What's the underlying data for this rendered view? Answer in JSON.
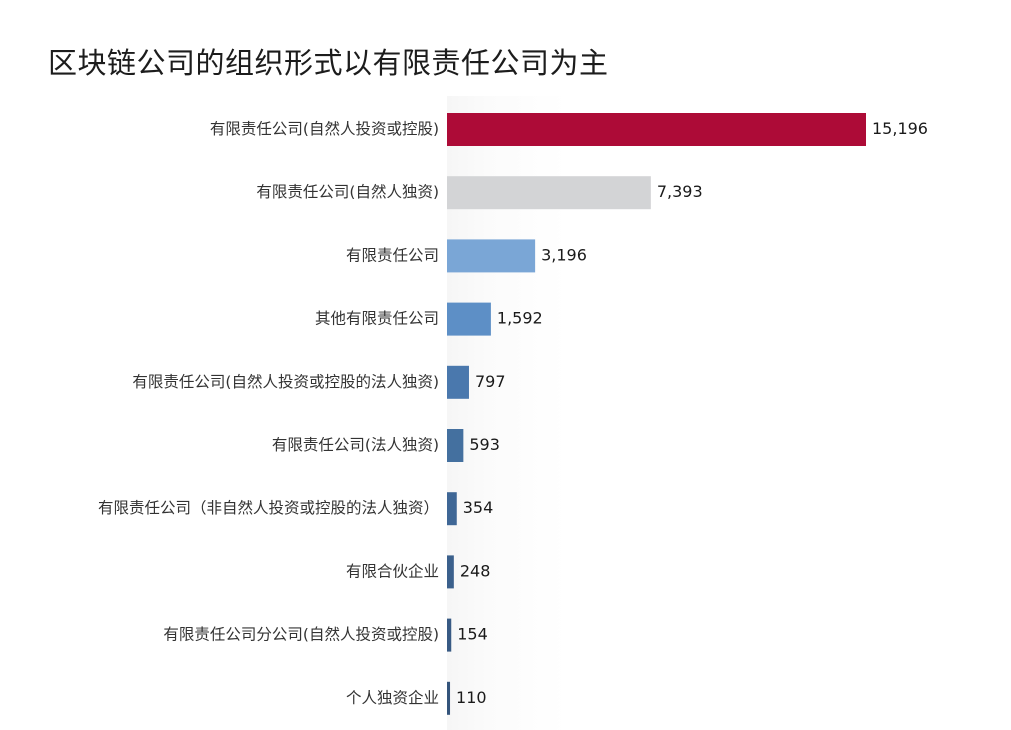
{
  "chart_data": {
    "type": "bar",
    "orientation": "horizontal",
    "title": "区块链公司的组织形式以有限责任公司为主",
    "categories": [
      "有限责任公司(自然人投资或控股)",
      "有限责任公司(自然人独资)",
      "有限责任公司",
      "其他有限责任公司",
      "有限责任公司(自然人投资或控股的法人独资)",
      "有限责任公司(法人独资)",
      "有限责任公司（非自然人投资或控股的法人独资）",
      "有限合伙企业",
      "有限责任公司分公司(自然人投资或控股)",
      "个人独资企业"
    ],
    "values": [
      15196,
      7393,
      3196,
      1592,
      797,
      593,
      354,
      248,
      154,
      110
    ],
    "value_labels": [
      "15,196",
      "7,393",
      "3,196",
      "1,592",
      "797",
      "593",
      "354",
      "248",
      "154",
      "110"
    ],
    "colors": [
      "#ad0b37",
      "#d3d4d6",
      "#7aa6d6",
      "#5d8fc6",
      "#4a78ad",
      "#44709f",
      "#3f6796",
      "#3b608c",
      "#385a84",
      "#34547b"
    ],
    "grid": false,
    "legend": "none",
    "xlim": [
      0,
      15196
    ]
  }
}
